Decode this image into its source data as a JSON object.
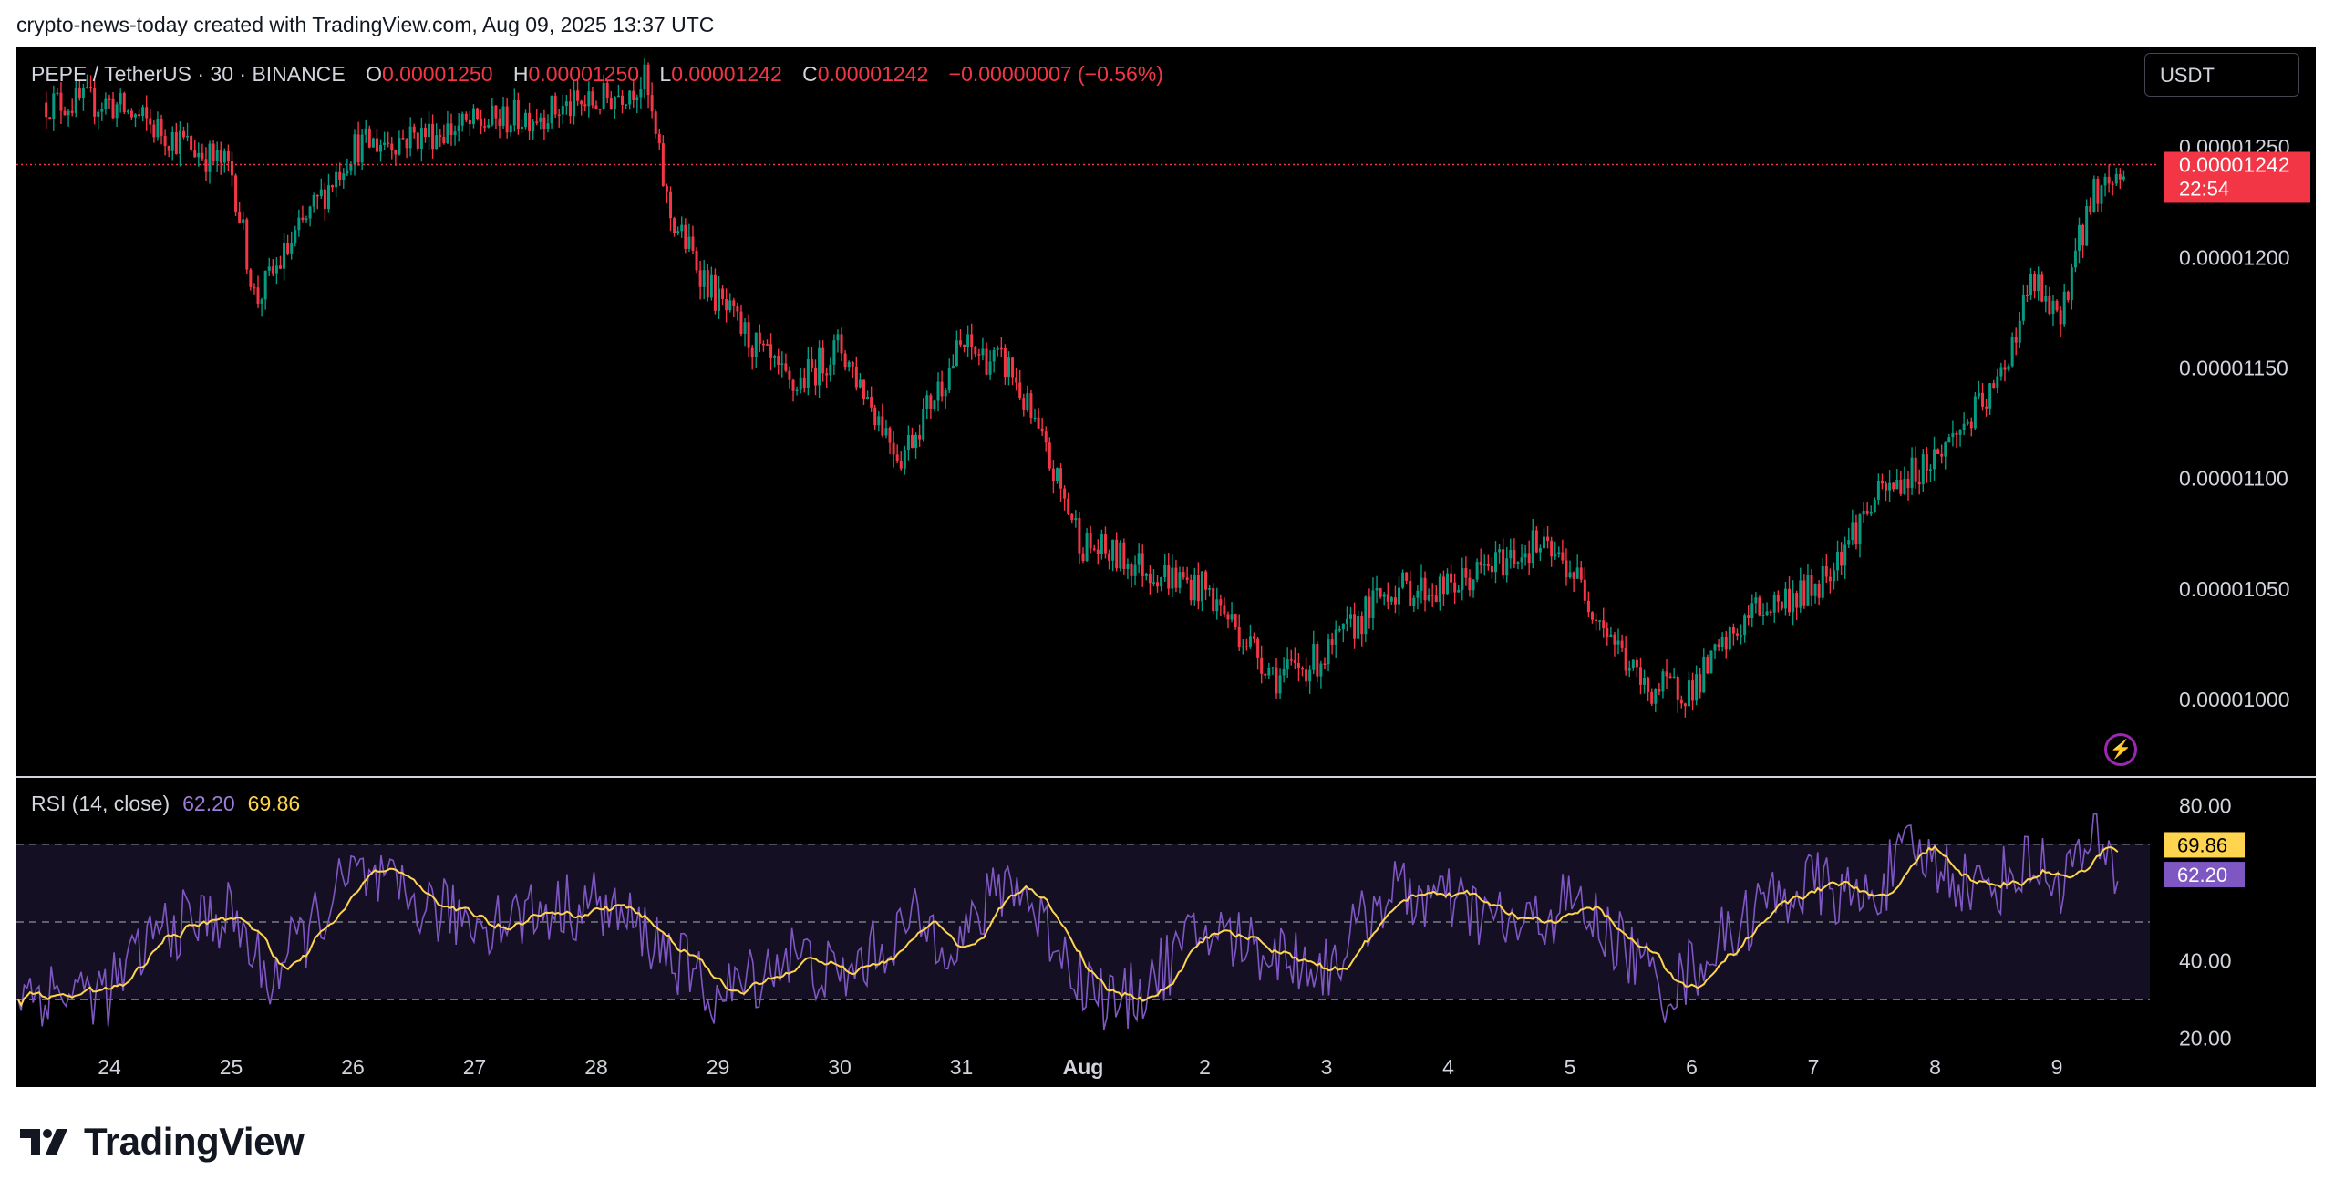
{
  "header": {
    "caption": "crypto-news-today created with TradingView.com, Aug 09, 2025 13:37 UTC"
  },
  "legend": {
    "symbol": "PEPE / TetherUS · 30 · BINANCE",
    "o_label": "O",
    "o_value": "0.00001250",
    "h_label": "H",
    "h_value": "0.00001250",
    "l_label": "L",
    "l_value": "0.00001242",
    "c_label": "C",
    "c_value": "0.00001242",
    "change": "−0.00000007 (−0.56%)"
  },
  "currency_button": "USDT",
  "price_tag": {
    "price": "0.00001242",
    "countdown": "22:54"
  },
  "rsi_legend": {
    "title": "RSI (14, close)",
    "rsi": "62.20",
    "ma": "69.86"
  },
  "rsi_tags": {
    "ma": "69.86",
    "rsi": "62.20"
  },
  "footer": {
    "brand": "TradingView"
  },
  "colors": {
    "up": "#089981",
    "down": "#f23645",
    "rsi_line": "#7e57c2",
    "rsi_ma": "#ffd54f",
    "background": "#000000"
  },
  "icons": {
    "lightning": "lightning-icon",
    "logo": "tradingview-logo-icon"
  },
  "chart_data": [
    {
      "type": "candlestick",
      "title": "PEPE / TetherUS · 30 · BINANCE",
      "interval": "30",
      "ylim": [
        9.65e-06,
        1.295e-05
      ],
      "y_ticks": [
        {
          "value": 1.25e-05,
          "label": "0.00001250"
        },
        {
          "value": 1.2e-05,
          "label": "0.00001200"
        },
        {
          "value": 1.15e-05,
          "label": "0.00001150"
        },
        {
          "value": 1.1e-05,
          "label": "0.00001100"
        },
        {
          "value": 1.05e-05,
          "label": "0.00001050"
        },
        {
          "value": 1e-05,
          "label": "0.00001000"
        }
      ],
      "x_ticks": [
        "24",
        "25",
        "26",
        "27",
        "28",
        "29",
        "30",
        "31",
        "Aug",
        "2",
        "3",
        "4",
        "5",
        "6",
        "7",
        "8",
        "9"
      ],
      "last_price": 1.242e-05,
      "close_path": [
        [
          "24",
          1.27e-05
        ],
        [
          "25",
          1.24e-05
        ],
        [
          "25.2",
          1.18e-05
        ],
        [
          "26",
          1.25e-05
        ],
        [
          "27",
          1.26e-05
        ],
        [
          "28",
          1.27e-05
        ],
        [
          "28.4",
          1.28e-05
        ],
        [
          "28.6",
          1.22e-05
        ],
        [
          "29",
          1.18e-05
        ],
        [
          "29.6",
          1.14e-05
        ],
        [
          "30",
          1.16e-05
        ],
        [
          "30.5",
          1.11e-05
        ],
        [
          "31",
          1.16e-05
        ],
        [
          "31.4",
          1.15e-05
        ],
        [
          "Aug",
          1.07e-05
        ],
        [
          "2",
          1.05e-05
        ],
        [
          "2.6",
          1.01e-05
        ],
        [
          "3",
          1.02e-05
        ],
        [
          "3.5",
          1.05e-05
        ],
        [
          "4",
          1.05e-05
        ],
        [
          "4.7",
          1.07e-05
        ],
        [
          "5",
          1.06e-05
        ],
        [
          "5.6",
          1.005e-05
        ],
        [
          "6",
          1.005e-05
        ],
        [
          "6.5",
          1.04e-05
        ],
        [
          "7",
          1.05e-05
        ],
        [
          "7.5",
          1.09e-05
        ],
        [
          "8",
          1.11e-05
        ],
        [
          "8.5",
          1.14e-05
        ],
        [
          "8.8",
          1.19e-05
        ],
        [
          "9",
          1.17e-05
        ],
        [
          "9.3",
          1.23e-05
        ],
        [
          "9.6",
          1.24e-05
        ]
      ]
    },
    {
      "type": "line",
      "title": "RSI (14, close)",
      "ylim": [
        15,
        85
      ],
      "y_ticks": [
        {
          "value": 80,
          "label": "80.00"
        },
        {
          "value": 40,
          "label": "40.00"
        },
        {
          "value": 20,
          "label": "20.00"
        }
      ],
      "bands": [
        70,
        50,
        30
      ],
      "series": [
        {
          "name": "RSI",
          "last": 62.2
        },
        {
          "name": "RSI-based MA",
          "last": 69.86
        }
      ],
      "rsi_path": [
        [
          "24",
          32
        ],
        [
          "24.4",
          48
        ],
        [
          "25",
          52
        ],
        [
          "25.3",
          35
        ],
        [
          "26",
          62
        ],
        [
          "26.5",
          55
        ],
        [
          "27",
          50
        ],
        [
          "28",
          55
        ],
        [
          "28.5",
          45
        ],
        [
          "29",
          30
        ],
        [
          "29.6",
          42
        ],
        [
          "30",
          35
        ],
        [
          "30.6",
          50
        ],
        [
          "31",
          45
        ],
        [
          "31.4",
          62
        ],
        [
          "Aug",
          35
        ],
        [
          "1.3",
          28
        ],
        [
          "2",
          48
        ],
        [
          "2.6",
          42
        ],
        [
          "3",
          38
        ],
        [
          "3.5",
          58
        ],
        [
          "4",
          55
        ],
        [
          "4.6",
          48
        ],
        [
          "5",
          55
        ],
        [
          "5.4",
          45
        ],
        [
          "5.8",
          32
        ],
        [
          "6",
          38
        ],
        [
          "6.6",
          55
        ],
        [
          "7",
          60
        ],
        [
          "7.4",
          55
        ],
        [
          "7.8",
          68
        ],
        [
          "8",
          65
        ],
        [
          "8.4",
          58
        ],
        [
          "8.8",
          66
        ],
        [
          "9",
          60
        ],
        [
          "9.3",
          70
        ],
        [
          "9.5",
          62.2
        ]
      ]
    }
  ]
}
